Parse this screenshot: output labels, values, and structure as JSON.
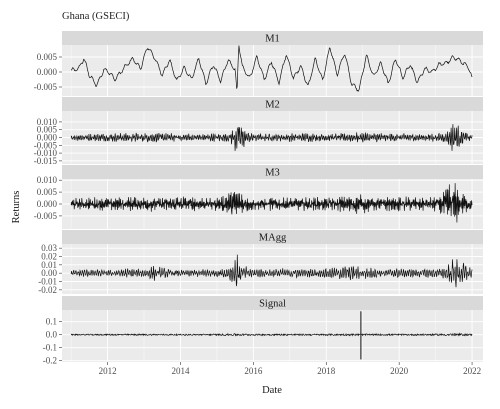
{
  "chart_data": {
    "type": "line",
    "title": "Ghana (GSECI)",
    "xlabel": "Date",
    "ylabel": "Returns",
    "xlim": [
      2010.75,
      2022.3
    ],
    "x_ticks": [
      2012,
      2014,
      2016,
      2018,
      2020,
      2022
    ],
    "x_tick_labels": [
      "2012",
      "2014",
      "2016",
      "2018",
      "2020",
      "2022"
    ],
    "grid": true,
    "style": {
      "panel_bg": "#ebebeb",
      "strip_bg": "#d9d9d9",
      "grid": "#ffffff",
      "line": "#111111"
    },
    "panels": [
      {
        "strip": "M1",
        "ylim": [
          -0.008,
          0.009
        ],
        "yticks": [
          -0.005,
          0.0,
          0.005
        ],
        "ytick_labels": [
          "-0.005",
          "0.000",
          "0.005"
        ],
        "x": [
          2011.0,
          2011.2,
          2011.35,
          2011.5,
          2011.7,
          2011.9,
          2012.0,
          2012.2,
          2012.5,
          2012.7,
          2012.9,
          2013.1,
          2013.3,
          2013.5,
          2013.7,
          2013.9,
          2014.1,
          2014.3,
          2014.5,
          2014.7,
          2014.9,
          2015.1,
          2015.3,
          2015.5,
          2015.55,
          2015.6,
          2015.7,
          2015.9,
          2016.1,
          2016.3,
          2016.5,
          2016.7,
          2016.9,
          2017.1,
          2017.3,
          2017.5,
          2017.7,
          2017.9,
          2018.1,
          2018.3,
          2018.5,
          2018.7,
          2018.9,
          2019.1,
          2019.3,
          2019.5,
          2019.7,
          2019.9,
          2020.1,
          2020.3,
          2020.5,
          2020.7,
          2020.9,
          2021.1,
          2021.3,
          2021.5,
          2021.7,
          2021.9,
          2022.0
        ],
        "y": [
          0.0005,
          0.001,
          0.0045,
          -0.001,
          -0.0045,
          0.0008,
          0.0005,
          -0.0025,
          0.002,
          0.0045,
          0.001,
          0.0085,
          0.0045,
          -0.001,
          0.004,
          -0.003,
          0.0015,
          -0.0025,
          0.0045,
          -0.004,
          0.0025,
          -0.003,
          0.004,
          0.0008,
          -0.0075,
          0.0095,
          0.0015,
          -0.002,
          0.005,
          -0.0025,
          0.0035,
          -0.0035,
          0.006,
          -0.002,
          0.002,
          -0.005,
          0.0045,
          -0.003,
          0.0085,
          -0.001,
          0.0065,
          -0.004,
          -0.006,
          0.0055,
          -0.0015,
          0.003,
          -0.004,
          0.0045,
          -0.002,
          0.0025,
          -0.0035,
          0.001,
          0.0,
          0.0025,
          0.003,
          0.005,
          0.0035,
          0.0015,
          -0.002
        ]
      },
      {
        "strip": "M2",
        "ylim": [
          -0.017,
          0.017
        ],
        "yticks": [
          -0.015,
          -0.01,
          -0.005,
          0.0,
          0.005,
          0.01
        ],
        "ytick_labels": [
          "-0.015",
          "-0.010",
          "-0.005",
          "0.000",
          "0.005",
          "0.010"
        ],
        "x": [
          2011.0,
          2011.5,
          2012.0,
          2012.5,
          2013.0,
          2013.5,
          2014.0,
          2014.5,
          2015.0,
          2015.3,
          2015.45,
          2015.55,
          2015.65,
          2015.8,
          2016.0,
          2016.5,
          2017.0,
          2017.5,
          2018.0,
          2018.5,
          2019.0,
          2019.5,
          2020.0,
          2020.5,
          2021.0,
          2021.3,
          2021.45,
          2021.55,
          2021.7,
          2022.0
        ],
        "envelope": [
          0.002,
          0.0025,
          0.0028,
          0.003,
          0.0035,
          0.003,
          0.0028,
          0.0025,
          0.0028,
          0.003,
          0.006,
          0.0165,
          0.012,
          0.004,
          0.003,
          0.0025,
          0.0028,
          0.003,
          0.0025,
          0.003,
          0.0035,
          0.003,
          0.0028,
          0.0025,
          0.003,
          0.0035,
          0.009,
          0.011,
          0.005,
          0.003
        ]
      },
      {
        "strip": "M3",
        "ylim": [
          -0.0105,
          0.0105
        ],
        "yticks": [
          -0.005,
          0.0,
          0.005,
          0.01
        ],
        "ytick_labels": [
          "-0.005",
          "0.000",
          "0.005",
          "0.010"
        ],
        "x": [
          2011.0,
          2011.5,
          2012.0,
          2012.5,
          2013.0,
          2013.5,
          2014.0,
          2014.5,
          2015.0,
          2015.3,
          2015.5,
          2015.7,
          2015.9,
          2016.2,
          2016.5,
          2017.0,
          2017.5,
          2018.0,
          2018.5,
          2018.9,
          2019.1,
          2019.5,
          2020.0,
          2020.5,
          2021.0,
          2021.2,
          2021.4,
          2021.6,
          2021.8,
          2022.0
        ],
        "envelope": [
          0.0025,
          0.003,
          0.0028,
          0.003,
          0.0035,
          0.003,
          0.0035,
          0.003,
          0.003,
          0.0045,
          0.008,
          0.006,
          0.003,
          0.0025,
          0.003,
          0.0028,
          0.003,
          0.003,
          0.0035,
          0.0055,
          0.0035,
          0.003,
          0.0035,
          0.003,
          0.0035,
          0.005,
          0.01,
          0.0085,
          0.004,
          0.003
        ]
      },
      {
        "strip": "MAgg",
        "ylim": [
          -0.025,
          0.035
        ],
        "yticks": [
          -0.02,
          -0.01,
          0.0,
          0.01,
          0.02,
          0.03
        ],
        "ytick_labels": [
          "-0.02",
          "-0.01",
          "0.00",
          "0.01",
          "0.02",
          "0.03"
        ],
        "x": [
          2011.0,
          2011.5,
          2012.0,
          2012.5,
          2013.0,
          2013.3,
          2013.6,
          2014.0,
          2014.5,
          2015.0,
          2015.3,
          2015.45,
          2015.55,
          2015.7,
          2015.9,
          2016.3,
          2016.8,
          2017.3,
          2017.8,
          2018.3,
          2018.7,
          2019.0,
          2019.5,
          2020.0,
          2020.5,
          2021.0,
          2021.3,
          2021.45,
          2021.6,
          2021.8,
          2022.0
        ],
        "envelope": [
          0.004,
          0.005,
          0.004,
          0.006,
          0.005,
          0.01,
          0.006,
          0.004,
          0.005,
          0.005,
          0.007,
          0.017,
          0.025,
          0.012,
          0.006,
          0.005,
          0.006,
          0.006,
          0.005,
          0.007,
          0.01,
          0.008,
          0.005,
          0.006,
          0.005,
          0.006,
          0.008,
          0.022,
          0.018,
          0.012,
          0.006
        ]
      },
      {
        "strip": "Signal",
        "ylim": [
          -0.21,
          0.19
        ],
        "yticks": [
          -0.2,
          -0.1,
          0.0,
          0.1
        ],
        "ytick_labels": [
          "-0.2",
          "-0.1",
          "0.0",
          "0.1"
        ],
        "x": [
          2011.0,
          2012.0,
          2013.0,
          2014.0,
          2015.0,
          2015.5,
          2016.0,
          2017.0,
          2018.0,
          2018.9,
          2019.0,
          2019.5,
          2020.0,
          2021.0,
          2021.5,
          2022.0
        ],
        "envelope": [
          0.006,
          0.007,
          0.008,
          0.007,
          0.008,
          0.012,
          0.008,
          0.008,
          0.009,
          0.01,
          0.009,
          0.008,
          0.008,
          0.009,
          0.014,
          0.008
        ],
        "spikes": [
          {
            "x": 2018.95,
            "y": 0.18
          },
          {
            "x": 2018.95,
            "y": -0.19
          }
        ]
      }
    ]
  }
}
